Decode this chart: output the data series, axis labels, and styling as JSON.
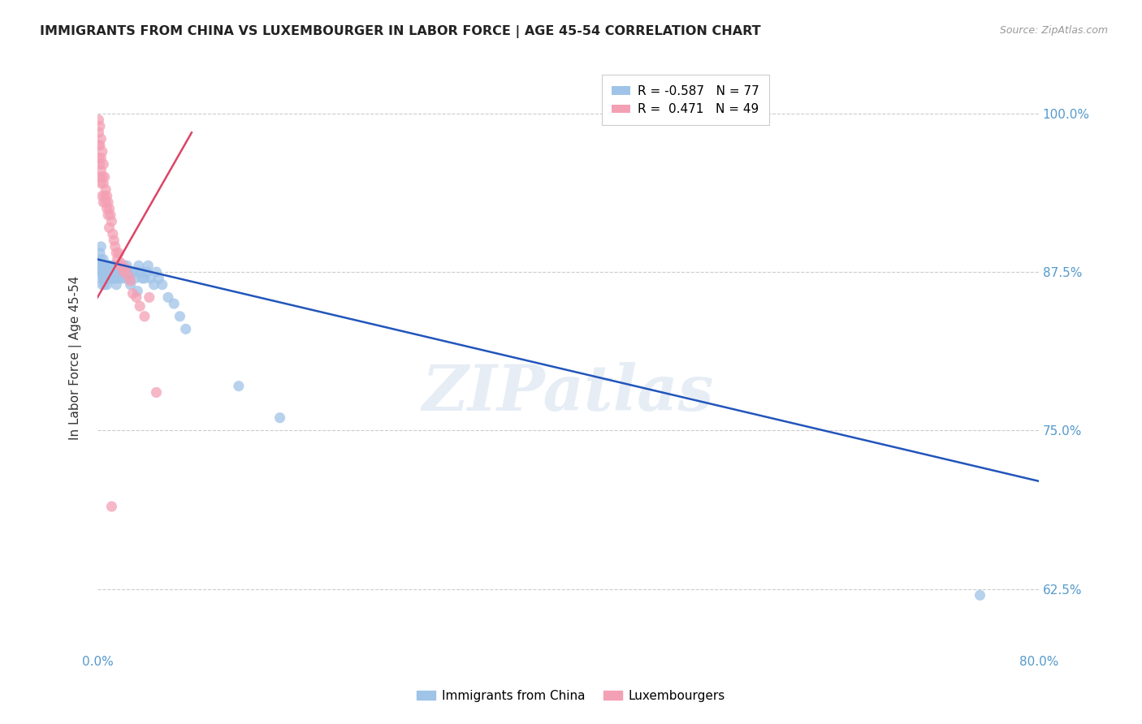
{
  "title": "IMMIGRANTS FROM CHINA VS LUXEMBOURGER IN LABOR FORCE | AGE 45-54 CORRELATION CHART",
  "source": "Source: ZipAtlas.com",
  "ylabel": "In Labor Force | Age 45-54",
  "yticks": [
    0.625,
    0.75,
    0.875,
    1.0
  ],
  "ytick_labels": [
    "62.5%",
    "75.0%",
    "87.5%",
    "100.0%"
  ],
  "legend_labels": [
    "Immigrants from China",
    "Luxembourgers"
  ],
  "blue_color": "#a0c4e8",
  "pink_color": "#f4a0b4",
  "blue_line_color": "#2255bb",
  "pink_line_color": "#dd4466",
  "watermark": "ZIPatlas",
  "xmin": 0.0,
  "xmax": 0.8,
  "ymin": 0.575,
  "ymax": 1.04,
  "blue_points": [
    [
      0.001,
      0.88
    ],
    [
      0.002,
      0.875
    ],
    [
      0.002,
      0.89
    ],
    [
      0.003,
      0.875
    ],
    [
      0.003,
      0.885
    ],
    [
      0.003,
      0.87
    ],
    [
      0.003,
      0.895
    ],
    [
      0.004,
      0.88
    ],
    [
      0.004,
      0.875
    ],
    [
      0.004,
      0.865
    ],
    [
      0.004,
      0.88
    ],
    [
      0.005,
      0.875
    ],
    [
      0.005,
      0.87
    ],
    [
      0.005,
      0.88
    ],
    [
      0.005,
      0.885
    ],
    [
      0.005,
      0.875
    ],
    [
      0.006,
      0.87
    ],
    [
      0.006,
      0.88
    ],
    [
      0.006,
      0.875
    ],
    [
      0.006,
      0.865
    ],
    [
      0.007,
      0.875
    ],
    [
      0.007,
      0.88
    ],
    [
      0.007,
      0.87
    ],
    [
      0.008,
      0.875
    ],
    [
      0.008,
      0.88
    ],
    [
      0.008,
      0.865
    ],
    [
      0.009,
      0.875
    ],
    [
      0.009,
      0.87
    ],
    [
      0.009,
      0.88
    ],
    [
      0.01,
      0.875
    ],
    [
      0.01,
      0.88
    ],
    [
      0.01,
      0.87
    ],
    [
      0.011,
      0.875
    ],
    [
      0.011,
      0.88
    ],
    [
      0.012,
      0.875
    ],
    [
      0.012,
      0.87
    ],
    [
      0.013,
      0.875
    ],
    [
      0.013,
      0.88
    ],
    [
      0.014,
      0.87
    ],
    [
      0.014,
      0.875
    ],
    [
      0.015,
      0.88
    ],
    [
      0.015,
      0.87
    ],
    [
      0.016,
      0.875
    ],
    [
      0.016,
      0.865
    ],
    [
      0.017,
      0.875
    ],
    [
      0.018,
      0.87
    ],
    [
      0.019,
      0.88
    ],
    [
      0.02,
      0.875
    ],
    [
      0.021,
      0.87
    ],
    [
      0.022,
      0.88
    ],
    [
      0.023,
      0.875
    ],
    [
      0.024,
      0.87
    ],
    [
      0.025,
      0.88
    ],
    [
      0.026,
      0.875
    ],
    [
      0.027,
      0.87
    ],
    [
      0.028,
      0.865
    ],
    [
      0.03,
      0.875
    ],
    [
      0.032,
      0.87
    ],
    [
      0.033,
      0.875
    ],
    [
      0.034,
      0.86
    ],
    [
      0.035,
      0.88
    ],
    [
      0.037,
      0.875
    ],
    [
      0.038,
      0.87
    ],
    [
      0.04,
      0.87
    ],
    [
      0.042,
      0.875
    ],
    [
      0.043,
      0.88
    ],
    [
      0.045,
      0.87
    ],
    [
      0.048,
      0.865
    ],
    [
      0.05,
      0.875
    ],
    [
      0.052,
      0.87
    ],
    [
      0.055,
      0.865
    ],
    [
      0.06,
      0.855
    ],
    [
      0.065,
      0.85
    ],
    [
      0.07,
      0.84
    ],
    [
      0.075,
      0.83
    ],
    [
      0.12,
      0.785
    ],
    [
      0.155,
      0.76
    ],
    [
      0.75,
      0.62
    ]
  ],
  "pink_points": [
    [
      0.001,
      0.995
    ],
    [
      0.001,
      0.985
    ],
    [
      0.001,
      0.975
    ],
    [
      0.001,
      0.965
    ],
    [
      0.002,
      0.99
    ],
    [
      0.002,
      0.975
    ],
    [
      0.002,
      0.96
    ],
    [
      0.002,
      0.95
    ],
    [
      0.003,
      0.98
    ],
    [
      0.003,
      0.965
    ],
    [
      0.003,
      0.955
    ],
    [
      0.003,
      0.945
    ],
    [
      0.004,
      0.97
    ],
    [
      0.004,
      0.95
    ],
    [
      0.004,
      0.935
    ],
    [
      0.005,
      0.96
    ],
    [
      0.005,
      0.945
    ],
    [
      0.005,
      0.93
    ],
    [
      0.006,
      0.95
    ],
    [
      0.006,
      0.935
    ],
    [
      0.007,
      0.94
    ],
    [
      0.007,
      0.93
    ],
    [
      0.008,
      0.935
    ],
    [
      0.008,
      0.925
    ],
    [
      0.009,
      0.93
    ],
    [
      0.009,
      0.92
    ],
    [
      0.01,
      0.925
    ],
    [
      0.01,
      0.91
    ],
    [
      0.011,
      0.92
    ],
    [
      0.012,
      0.915
    ],
    [
      0.013,
      0.905
    ],
    [
      0.014,
      0.9
    ],
    [
      0.015,
      0.895
    ],
    [
      0.016,
      0.89
    ],
    [
      0.017,
      0.885
    ],
    [
      0.018,
      0.89
    ],
    [
      0.019,
      0.88
    ],
    [
      0.02,
      0.882
    ],
    [
      0.022,
      0.875
    ],
    [
      0.024,
      0.878
    ],
    [
      0.026,
      0.872
    ],
    [
      0.028,
      0.868
    ],
    [
      0.03,
      0.858
    ],
    [
      0.033,
      0.855
    ],
    [
      0.036,
      0.848
    ],
    [
      0.04,
      0.84
    ],
    [
      0.044,
      0.855
    ],
    [
      0.05,
      0.78
    ],
    [
      0.012,
      0.69
    ]
  ]
}
